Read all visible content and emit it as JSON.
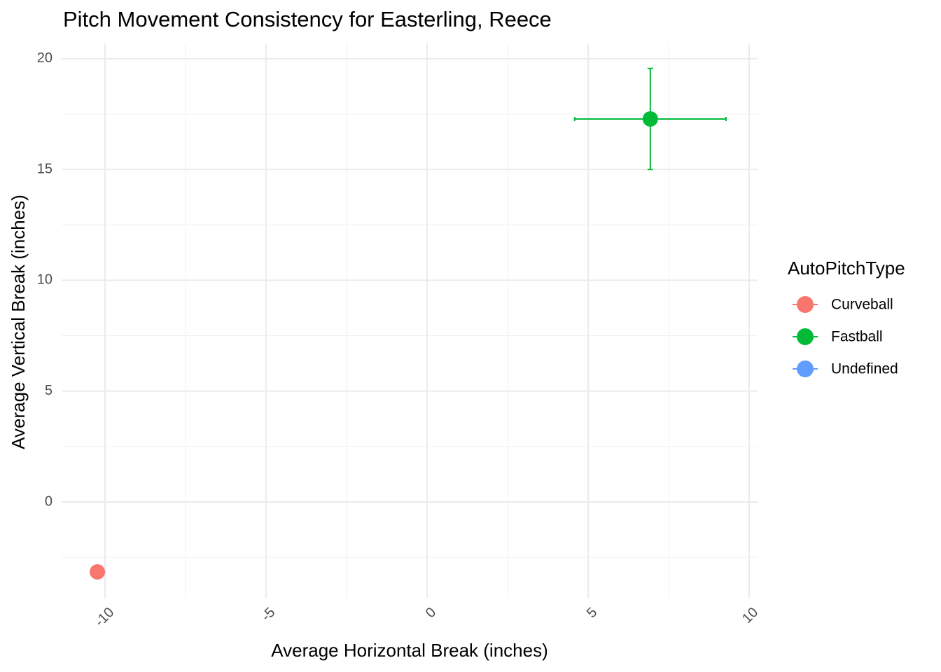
{
  "chart_data": {
    "type": "scatter",
    "title": "Pitch Movement Consistency for Easterling, Reece",
    "x_label": "Average Horizontal Break (inches)",
    "y_label": "Average Vertical Break (inches)",
    "legend_title": "AutoPitchType",
    "legend": "right",
    "grid": true,
    "xlim": [
      -11.35,
      10.26
    ],
    "ylim": [
      -4.36,
      20.69
    ],
    "xticks": [
      -10,
      -5,
      0,
      5,
      10
    ],
    "yticks": [
      0,
      5,
      10,
      15,
      20
    ],
    "xminor": [
      -7.5,
      -2.5,
      2.5,
      7.5
    ],
    "yminor": [
      -2.5,
      2.5,
      7.5,
      12.5,
      17.5
    ],
    "series": [
      {
        "name": "Curveball",
        "color": "#f8766d",
        "x": [
          -10.24
        ],
        "y": [
          -3.16
        ]
      },
      {
        "name": "Fastball",
        "color": "#00ba38",
        "x": [
          6.93
        ],
        "y": [
          17.28
        ],
        "xerr": [
          2.35
        ],
        "yerr": [
          2.28
        ]
      },
      {
        "name": "Undefined",
        "color": "#619cff",
        "x": [],
        "y": []
      }
    ]
  }
}
